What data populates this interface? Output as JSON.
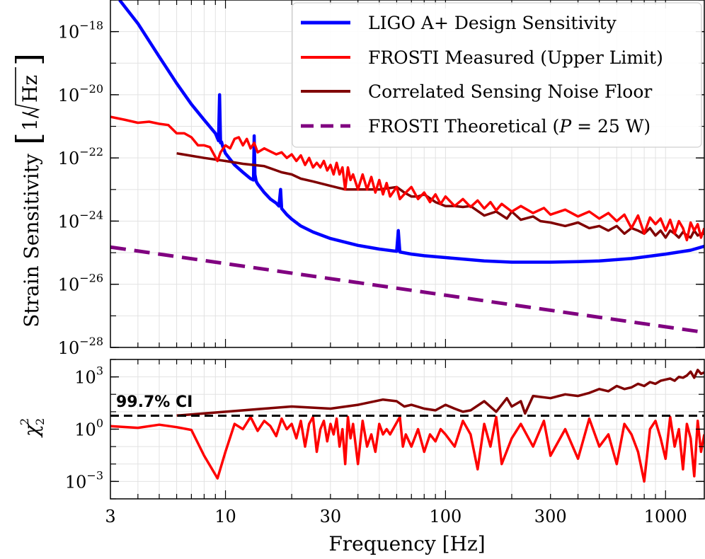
{
  "chart_data": [
    {
      "type": "line",
      "panel": "top",
      "xscale": "log",
      "yscale": "log",
      "xlim": [
        3,
        1500
      ],
      "ylim": [
        1e-28,
        1e-17
      ],
      "ylabel": "Strain Sensitivity [1/√Hz]",
      "ylabel_parts": {
        "main": "Strain Sensitivity",
        "unit_num": "1/",
        "unit_rad": "Hz"
      },
      "ytick_labels": [
        {
          "value": 1e-18,
          "base": "10",
          "exp": "−18"
        },
        {
          "value": 1e-20,
          "base": "10",
          "exp": "−20"
        },
        {
          "value": 1e-22,
          "base": "10",
          "exp": "−22"
        },
        {
          "value": 1e-24,
          "base": "10",
          "exp": "−24"
        },
        {
          "value": 1e-26,
          "base": "10",
          "exp": "−26"
        },
        {
          "value": 1e-28,
          "base": "10",
          "exp": "−28"
        }
      ],
      "grid": true,
      "legend_position": "top-right",
      "series": [
        {
          "name": "LIGO A+ Design Sensitivity",
          "color": "#0000ff",
          "style": "solid",
          "x": [
            3.3,
            4,
            5,
            6,
            7,
            8,
            9,
            9.3,
            9.4,
            9.5,
            9.6,
            9.7,
            10,
            11,
            12,
            13,
            13.4,
            13.5,
            13.6,
            13.8,
            14,
            15,
            16,
            17,
            17.5,
            17.8,
            18,
            19,
            20,
            22,
            25,
            30,
            40,
            50,
            60,
            61,
            62,
            70,
            80,
            100,
            150,
            200,
            300,
            400,
            500,
            700,
            1000,
            1300,
            1500
          ],
          "y": [
            1e-17,
            1.8e-18,
            1.6e-19,
            2.3e-20,
            5e-21,
            1.6e-21,
            6e-22,
            3.5e-22,
            1e-20,
            3e-22,
            3.2e-22,
            2.4e-22,
            1.4e-22,
            6e-23,
            3.5e-23,
            2.2e-23,
            2e-23,
            5e-22,
            3e-23,
            1.8e-23,
            1.5e-23,
            8e-24,
            5e-24,
            3.7e-24,
            3e-24,
            1e-23,
            2.5e-24,
            1.6e-24,
            1.15e-24,
            7e-25,
            4.5e-25,
            2.8e-25,
            1.7e-25,
            1.3e-25,
            1.1e-25,
            5e-25,
            1.05e-25,
            9e-26,
            8e-26,
            7e-26,
            5.5e-26,
            5e-26,
            5e-26,
            5.2e-26,
            5.5e-26,
            6.5e-26,
            9e-26,
            1.2e-25,
            1.6e-25
          ]
        },
        {
          "name": "FROSTI Measured (Upper Limit)",
          "color": "#ff0000",
          "style": "solid",
          "x": [
            3,
            3.5,
            4,
            4.5,
            5,
            5.5,
            6,
            6.5,
            7,
            7.5,
            8,
            8.5,
            9.2,
            9.5,
            10,
            10.5,
            11,
            11.5,
            12,
            12.5,
            13,
            13.5,
            14,
            15,
            16,
            17,
            18,
            19,
            20,
            21,
            22,
            23,
            24,
            25,
            26,
            27,
            28,
            29,
            30,
            31,
            32,
            33,
            34,
            35,
            36,
            37,
            38,
            40,
            42,
            44,
            46,
            48,
            50,
            52,
            54,
            56,
            60,
            62,
            66,
            70,
            75,
            80,
            85,
            90,
            95,
            100,
            110,
            120,
            130,
            140,
            150,
            160,
            170,
            180,
            200,
            220,
            250,
            280,
            300,
            350,
            400,
            450,
            500,
            550,
            600,
            650,
            700,
            750,
            800,
            850,
            900,
            950,
            1000,
            1050,
            1100,
            1150,
            1200,
            1250,
            1300,
            1350,
            1400,
            1450,
            1500
          ],
          "y": [
            2e-21,
            1.6e-21,
            1.3e-21,
            1.4e-21,
            1.2e-21,
            1.1e-21,
            6e-22,
            6e-22,
            4.5e-22,
            2.5e-22,
            2.5e-22,
            2.2e-22,
            8e-23,
            1.5e-22,
            2.5e-22,
            2e-22,
            4e-22,
            4.5e-22,
            2.5e-22,
            4e-22,
            2e-22,
            3e-22,
            1.5e-22,
            2e-22,
            1.6e-22,
            1.3e-22,
            1.5e-22,
            1e-22,
            1.3e-22,
            8e-23,
            1.2e-22,
            6e-23,
            1e-22,
            5e-23,
            7e-23,
            5e-23,
            8e-23,
            4e-23,
            6e-23,
            3e-23,
            7e-23,
            3e-23,
            5e-23,
            1e-23,
            5e-23,
            2e-23,
            3e-23,
            1e-23,
            3e-23,
            1e-23,
            2.5e-23,
            8e-24,
            2e-23,
            7e-24,
            1.6e-23,
            6e-24,
            1.2e-23,
            5e-24,
            8e-24,
            1.2e-23,
            5e-24,
            8e-24,
            4e-24,
            7e-24,
            3.5e-24,
            6e-24,
            3e-24,
            5e-24,
            2.8e-24,
            4.5e-24,
            2.5e-24,
            4e-24,
            2.2e-24,
            3.5e-24,
            2e-24,
            3e-24,
            1.8e-24,
            2.6e-24,
            1.6e-24,
            2.3e-24,
            1.4e-24,
            2e-24,
            1.2e-24,
            1.8e-24,
            1e-24,
            1.6e-24,
            6e-25,
            1.5e-24,
            4e-25,
            1.3e-24,
            8e-25,
            1.2e-24,
            5e-25,
            1.1e-24,
            4e-25,
            1e-24,
            6e-25,
            2.5e-25,
            9e-25,
            5e-25,
            8e-25,
            3e-25,
            6e-25
          ]
        },
        {
          "name": "Correlated Sensing Noise Floor",
          "color": "#800000",
          "style": "solid",
          "x": [
            6,
            8,
            10,
            12,
            15,
            18,
            20,
            22,
            25,
            30,
            35,
            40,
            45,
            50,
            55,
            60,
            65,
            70,
            75,
            80,
            90,
            100,
            110,
            120,
            130,
            150,
            170,
            190,
            200,
            220,
            250,
            270,
            300,
            350,
            400,
            450,
            500,
            550,
            600,
            650,
            700,
            750,
            800,
            850,
            900,
            950,
            1000,
            1050,
            1100,
            1150,
            1200,
            1250,
            1300,
            1350,
            1400,
            1450,
            1500
          ],
          "y": [
            1.4e-22,
            1e-22,
            8e-23,
            6.5e-23,
            5.5e-23,
            3.5e-23,
            3e-23,
            2.2e-23,
            1.8e-23,
            1.3e-23,
            1e-23,
            1e-23,
            1e-23,
            1e-23,
            1.1e-23,
            1.2e-23,
            8e-24,
            6e-24,
            6e-24,
            7e-24,
            4e-24,
            3e-24,
            3e-24,
            2.8e-24,
            3e-24,
            1.5e-24,
            2e-24,
            1.2e-24,
            2e-24,
            1.1e-24,
            1.4e-24,
            1e-24,
            9e-25,
            7e-25,
            9e-25,
            6e-25,
            7e-25,
            5e-25,
            7e-25,
            4e-25,
            6e-25,
            5e-25,
            4e-25,
            6e-25,
            3.5e-25,
            5e-25,
            3e-25,
            5e-25,
            4e-25,
            3e-25,
            4.5e-25,
            3.5e-25,
            3e-25,
            5e-25,
            3.5e-25,
            4e-25,
            4e-25
          ]
        },
        {
          "name": "FROSTI Theoretical (P = 25 W)",
          "name_parts": {
            "prefix": "FROSTI Theoretical (",
            "var": "P",
            "suffix": " = 25 W)"
          },
          "color": "#800080",
          "style": "dashed",
          "x": [
            3,
            1500
          ],
          "y": [
            1.5e-25,
            3e-28
          ]
        }
      ]
    },
    {
      "type": "line",
      "panel": "bottom",
      "xscale": "log",
      "yscale": "log",
      "xlim": [
        3,
        1500
      ],
      "ylim": [
        0.0001,
        10000
      ],
      "xlabel": "Frequency [Hz]",
      "ylabel": "χ²₂",
      "ylabel_parts": {
        "sym": "χ",
        "sup": "2",
        "sub": "2"
      },
      "xtick_values": [
        3,
        10,
        30,
        100,
        300,
        1000
      ],
      "xtick_labels": [
        "3",
        "10",
        "30",
        "100",
        "300",
        "1000"
      ],
      "ytick_labels": [
        {
          "value": 1000,
          "base": "10",
          "exp": "3"
        },
        {
          "value": 1,
          "base": "10",
          "exp": "0"
        },
        {
          "value": 0.001,
          "base": "10",
          "exp": "−3"
        }
      ],
      "annotation": "99.7% CI",
      "ci_level": 5.9,
      "grid": true,
      "series": [
        {
          "name": "Correlated Sensing Noise Floor",
          "color": "#800000",
          "x": [
            6,
            10,
            15,
            20,
            30,
            40,
            52,
            60,
            65,
            70,
            80,
            90,
            100,
            110,
            120,
            130,
            150,
            170,
            190,
            200,
            220,
            230,
            250,
            300,
            350,
            400,
            450,
            500,
            550,
            600,
            650,
            700,
            750,
            800,
            850,
            900,
            950,
            1000,
            1050,
            1100,
            1150,
            1200,
            1250,
            1300,
            1350,
            1400,
            1450,
            1500
          ],
          "y": [
            6,
            10,
            15,
            20,
            15,
            25,
            50,
            40,
            20,
            25,
            15,
            12,
            25,
            15,
            10,
            12,
            40,
            10,
            60,
            20,
            40,
            8,
            80,
            60,
            100,
            80,
            120,
            200,
            150,
            300,
            200,
            250,
            400,
            300,
            500,
            400,
            600,
            700,
            800,
            600,
            1000,
            900,
            1200,
            2000,
            900,
            2500,
            1500,
            1800
          ]
        },
        {
          "name": "FROSTI Measured (Upper Limit)",
          "color": "#ff0000",
          "x": [
            3,
            4,
            5,
            6,
            7,
            8,
            9.2,
            10,
            11,
            12,
            13,
            14,
            15,
            16,
            17,
            18,
            19,
            20,
            21,
            22,
            23,
            24,
            25,
            26,
            27,
            28,
            29,
            30,
            31,
            32,
            33,
            34,
            35,
            36,
            37,
            38,
            40,
            42,
            44,
            46,
            48,
            50,
            52,
            54,
            56,
            62,
            64,
            66,
            70,
            75,
            80,
            85,
            90,
            95,
            100,
            110,
            120,
            130,
            140,
            150,
            160,
            170,
            180,
            200,
            220,
            250,
            280,
            300,
            350,
            400,
            450,
            500,
            550,
            600,
            650,
            700,
            750,
            800,
            850,
            900,
            950,
            1000,
            1050,
            1100,
            1150,
            1200,
            1250,
            1300,
            1350,
            1400,
            1450,
            1500
          ],
          "y": [
            1.5,
            1.2,
            1.8,
            1.3,
            0.9,
            0.03,
            0.0015,
            0.05,
            2,
            1,
            5,
            0.8,
            3,
            1.5,
            0.4,
            4,
            1,
            2,
            0.3,
            3,
            0.1,
            2,
            5,
            0.05,
            1,
            3,
            0.2,
            2,
            0.5,
            4,
            0.1,
            1,
            0.01,
            5,
            0.3,
            2,
            0.01,
            3,
            0.1,
            0.5,
            0.05,
            2,
            0.5,
            1,
            0.5,
            5,
            0.1,
            0.5,
            0.1,
            1,
            0.05,
            0.5,
            0.2,
            1,
            0.5,
            0.1,
            3,
            0.5,
            0.005,
            2,
            0.1,
            5,
            0.01,
            0.3,
            2,
            0.1,
            3,
            0.03,
            1,
            0.02,
            4,
            0.1,
            0.5,
            0.01,
            2,
            0.5,
            0.05,
            0.001,
            1,
            3,
            0.3,
            0.02,
            5,
            0.1,
            1,
            0.005,
            2,
            0.3,
            0.002,
            3,
            0.05,
            0.5
          ]
        }
      ]
    }
  ]
}
